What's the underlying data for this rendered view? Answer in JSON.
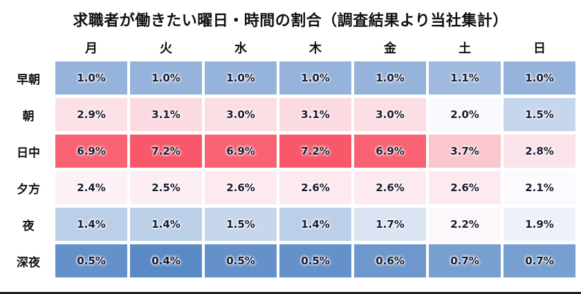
{
  "title": "求職者が働きたい曜日・時間の割合（調査結果より当社集計）",
  "chart_data": {
    "type": "heatmap",
    "title": "求職者が働きたい曜日・時間の割合（調査結果より当社集計）",
    "columns": [
      "月",
      "火",
      "水",
      "木",
      "金",
      "土",
      "日"
    ],
    "rows": [
      "早朝",
      "朝",
      "日中",
      "夕方",
      "夜",
      "深夜"
    ],
    "values": [
      [
        1.0,
        1.0,
        1.0,
        1.0,
        1.0,
        1.1,
        1.0
      ],
      [
        2.9,
        3.1,
        3.0,
        3.1,
        3.0,
        2.0,
        1.5
      ],
      [
        6.9,
        7.2,
        6.9,
        7.2,
        6.9,
        3.7,
        2.8
      ],
      [
        2.4,
        2.5,
        2.6,
        2.6,
        2.6,
        2.6,
        2.1
      ],
      [
        1.4,
        1.4,
        1.5,
        1.4,
        1.7,
        2.2,
        1.9
      ],
      [
        0.5,
        0.4,
        0.5,
        0.5,
        0.6,
        0.7,
        0.7
      ]
    ],
    "value_suffix": "%",
    "value_decimals": 1,
    "color_scale": {
      "min": 0.4,
      "mid": 2.05,
      "max": 7.2,
      "min_color": "#5a8ac6",
      "mid_color": "#fcfcff",
      "max_color": "#f8586a"
    },
    "grid": true,
    "legend": "none"
  },
  "colors": {
    "title_text": "#111111",
    "cell_text": "#1a1a2e",
    "gridline": "#ffffff",
    "bottom_border": "#1a1a1a"
  }
}
